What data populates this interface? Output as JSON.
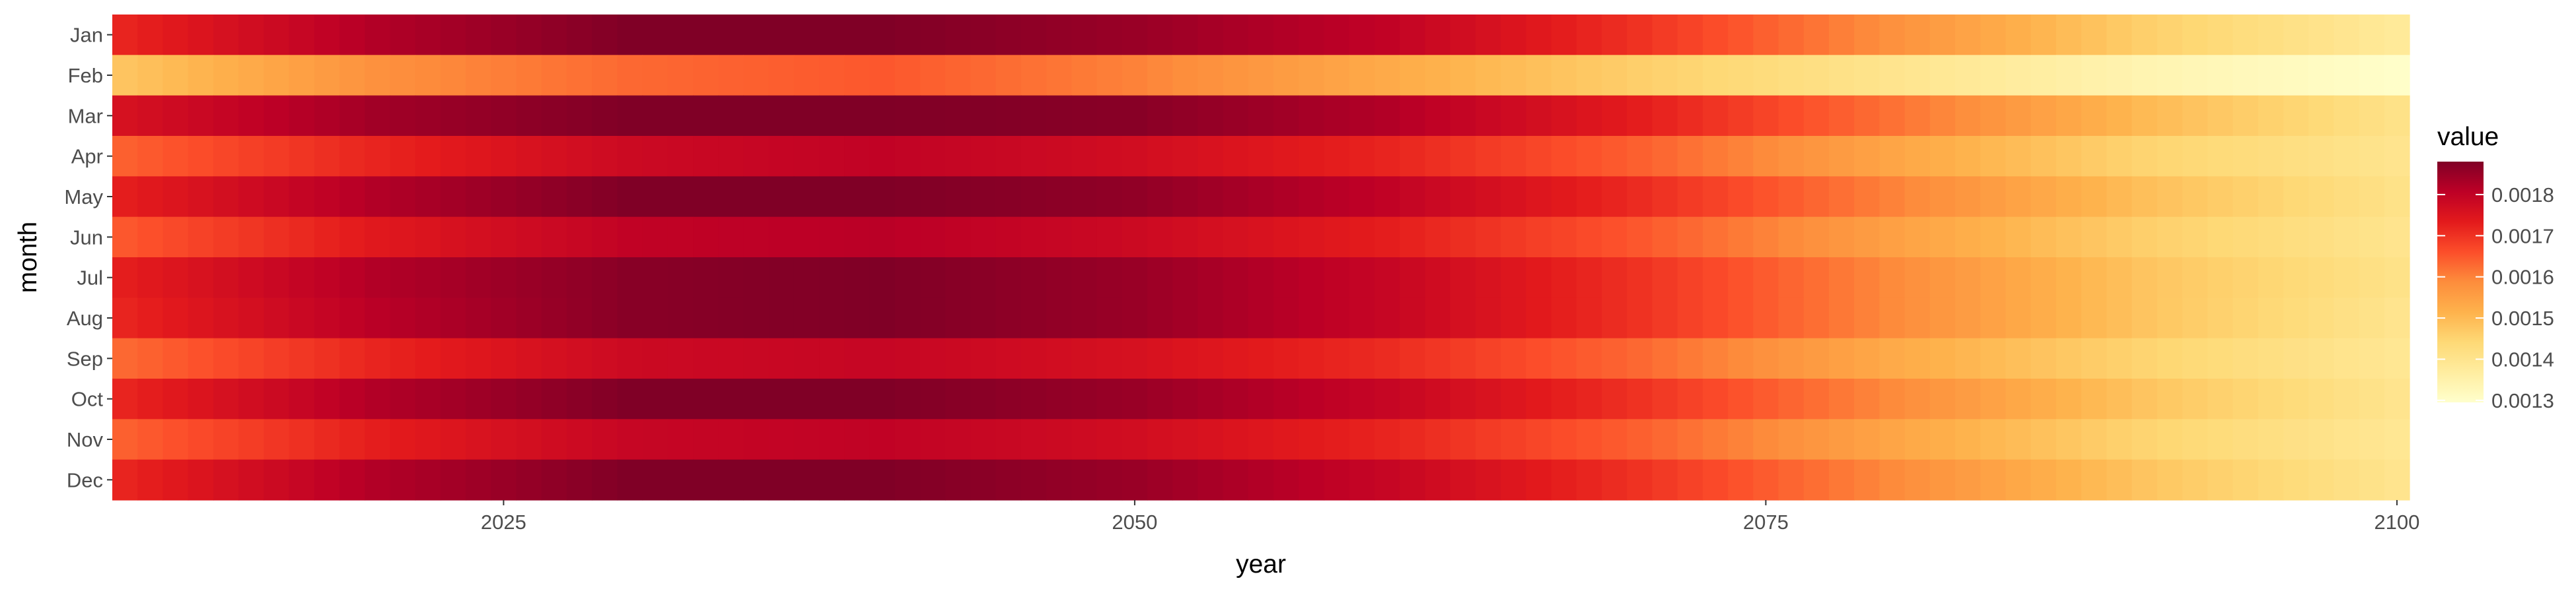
{
  "chart_data": {
    "type": "heatmap",
    "xlabel": "year",
    "ylabel": "month",
    "x_ticks": [
      2025,
      2050,
      2075,
      2100
    ],
    "months": [
      "Jan",
      "Feb",
      "Mar",
      "Apr",
      "May",
      "Jun",
      "Jul",
      "Aug",
      "Sep",
      "Oct",
      "Nov",
      "Dec"
    ],
    "year_range": [
      2010,
      2100
    ],
    "legend": {
      "title": "value",
      "ticks": [
        0.0013,
        0.0014,
        0.0015,
        0.0016,
        0.0017,
        0.0018
      ],
      "tick_labels": [
        "0.0013",
        "0.0014",
        "0.0015",
        "0.0016",
        "0.0017",
        "0.0018"
      ],
      "range": [
        0.001295,
        0.00188
      ],
      "palette": "YlOrRd",
      "position": "right"
    },
    "series": [
      {
        "name": "Jan",
        "years": [
          2010,
          2020,
          2030,
          2040,
          2050,
          2060,
          2070,
          2080,
          2090,
          2100
        ],
        "values": [
          0.00172,
          0.00182,
          0.00188,
          0.00188,
          0.00185,
          0.0018,
          0.0017,
          0.00158,
          0.00146,
          0.00138
        ]
      },
      {
        "name": "Feb",
        "years": [
          2010,
          2020,
          2030,
          2040,
          2050,
          2060,
          2070,
          2080,
          2090,
          2100
        ],
        "values": [
          0.00148,
          0.00158,
          0.00163,
          0.00165,
          0.0016,
          0.00153,
          0.00146,
          0.0014,
          0.00134,
          0.0013
        ]
      },
      {
        "name": "Mar",
        "years": [
          2010,
          2020,
          2030,
          2040,
          2050,
          2060,
          2070,
          2080,
          2090,
          2100
        ],
        "values": [
          0.00176,
          0.00184,
          0.00188,
          0.00188,
          0.00187,
          0.00182,
          0.00173,
          0.00162,
          0.0015,
          0.00141
        ]
      },
      {
        "name": "Apr",
        "years": [
          2010,
          2020,
          2030,
          2040,
          2050,
          2060,
          2070,
          2080,
          2090,
          2100
        ],
        "values": [
          0.00164,
          0.00172,
          0.00178,
          0.0018,
          0.00177,
          0.00172,
          0.00164,
          0.00154,
          0.00145,
          0.0014
        ]
      },
      {
        "name": "May",
        "years": [
          2010,
          2020,
          2030,
          2040,
          2050,
          2060,
          2070,
          2080,
          2090,
          2100
        ],
        "values": [
          0.00173,
          0.00182,
          0.00188,
          0.00188,
          0.00186,
          0.0018,
          0.00171,
          0.0016,
          0.00149,
          0.00141
        ]
      },
      {
        "name": "Jun",
        "years": [
          2010,
          2020,
          2030,
          2040,
          2050,
          2060,
          2070,
          2080,
          2090,
          2100
        ],
        "values": [
          0.00165,
          0.00174,
          0.0018,
          0.00181,
          0.00178,
          0.00173,
          0.00165,
          0.00155,
          0.00146,
          0.0014
        ]
      },
      {
        "name": "Jul",
        "years": [
          2010,
          2020,
          2030,
          2040,
          2050,
          2060,
          2070,
          2080,
          2090,
          2100
        ],
        "values": [
          0.00173,
          0.00182,
          0.00187,
          0.00188,
          0.00185,
          0.00179,
          0.0017,
          0.00159,
          0.00148,
          0.00141
        ]
      },
      {
        "name": "Aug",
        "years": [
          2010,
          2020,
          2030,
          2040,
          2050,
          2060,
          2070,
          2080,
          2090,
          2100
        ],
        "values": [
          0.00172,
          0.00181,
          0.00187,
          0.00188,
          0.00185,
          0.00179,
          0.0017,
          0.00159,
          0.00148,
          0.0014
        ]
      },
      {
        "name": "Sep",
        "years": [
          2010,
          2020,
          2030,
          2040,
          2050,
          2060,
          2070,
          2080,
          2090,
          2100
        ],
        "values": [
          0.00163,
          0.00172,
          0.00178,
          0.00179,
          0.00176,
          0.00171,
          0.00163,
          0.00153,
          0.00145,
          0.00139
        ]
      },
      {
        "name": "Oct",
        "years": [
          2010,
          2020,
          2030,
          2040,
          2050,
          2060,
          2070,
          2080,
          2090,
          2100
        ],
        "values": [
          0.00172,
          0.00182,
          0.00188,
          0.00188,
          0.00185,
          0.00179,
          0.0017,
          0.00159,
          0.00148,
          0.0014
        ]
      },
      {
        "name": "Nov",
        "years": [
          2010,
          2020,
          2030,
          2040,
          2050,
          2060,
          2070,
          2080,
          2090,
          2100
        ],
        "values": [
          0.00164,
          0.00173,
          0.00179,
          0.0018,
          0.00177,
          0.00172,
          0.00164,
          0.00154,
          0.00145,
          0.00139
        ]
      },
      {
        "name": "Dec",
        "years": [
          2010,
          2020,
          2030,
          2040,
          2050,
          2060,
          2070,
          2080,
          2090,
          2100
        ],
        "values": [
          0.00172,
          0.00182,
          0.00188,
          0.00188,
          0.00185,
          0.00179,
          0.0017,
          0.00159,
          0.00148,
          0.0014
        ]
      }
    ],
    "palette_stops": [
      "#ffffcc",
      "#ffeda0",
      "#fed976",
      "#feb24c",
      "#fd8d3c",
      "#fc4e2a",
      "#e31a1c",
      "#bd0026",
      "#800026"
    ]
  }
}
